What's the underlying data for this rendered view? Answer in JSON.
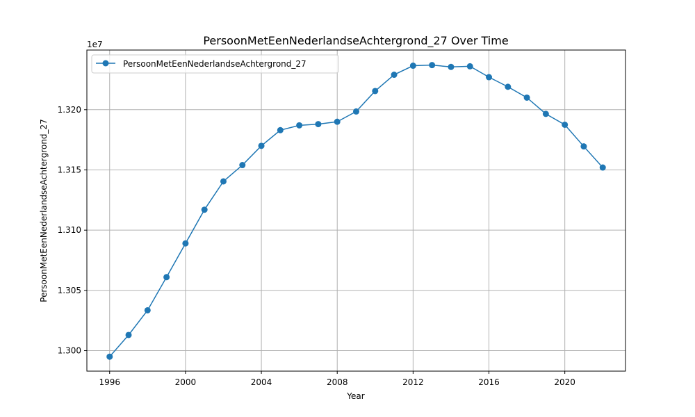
{
  "chart_data": {
    "type": "line",
    "title": "PersoonMetEenNederlandseAchtergrond_27 Over Time",
    "xlabel": "Year",
    "ylabel": "PersoonMetEenNederlandseAchtergrond_27",
    "y_offset_label": "1e7",
    "xlim": [
      1994.8,
      2023.2
    ],
    "ylim": [
      12983000,
      13249500
    ],
    "x_ticks": [
      1996,
      2000,
      2004,
      2008,
      2012,
      2016,
      2020
    ],
    "x_tick_labels": [
      "1996",
      "2000",
      "2004",
      "2008",
      "2012",
      "2016",
      "2020"
    ],
    "y_ticks": [
      13000000,
      13050000,
      13100000,
      13150000,
      13200000
    ],
    "y_tick_labels": [
      "1.300",
      "1.305",
      "1.310",
      "1.315",
      "1.320"
    ],
    "grid": true,
    "legend_position": "upper-left",
    "series": [
      {
        "name": "PersoonMetEenNederlandseAchtergrond_27",
        "color": "#1f77b4",
        "marker": "circle",
        "x": [
          1996,
          1997,
          1998,
          1999,
          2000,
          2001,
          2002,
          2003,
          2004,
          2005,
          2006,
          2007,
          2008,
          2009,
          2010,
          2011,
          2012,
          2013,
          2014,
          2015,
          2016,
          2017,
          2018,
          2019,
          2020,
          2021,
          2022
        ],
        "y": [
          12995000,
          13013000,
          13033500,
          13061000,
          13089000,
          13117000,
          13140500,
          13154000,
          13170000,
          13183000,
          13187000,
          13188000,
          13190000,
          13198500,
          13215500,
          13229000,
          13236500,
          13237000,
          13235500,
          13236000,
          13227000,
          13219000,
          13210000,
          13196500,
          13187500,
          13169500,
          13152000
        ]
      }
    ]
  }
}
